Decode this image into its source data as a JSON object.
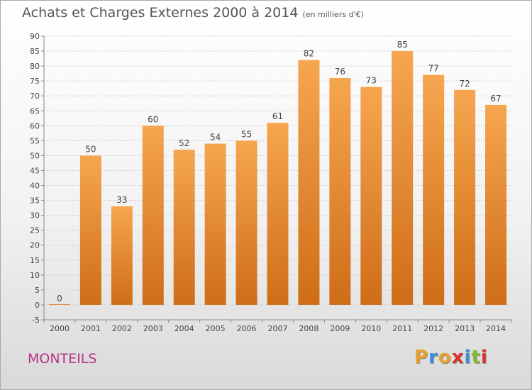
{
  "header": {
    "title": "Achats et Charges Externes 2000 à 2014",
    "unit": "(en milliers d'€)"
  },
  "footer": {
    "town": "MONTEILS",
    "logo": {
      "letters": [
        "P",
        "r",
        "o",
        "x",
        "i",
        "t",
        "i"
      ],
      "colors": [
        "#e8a02a",
        "#3a8fd9",
        "#e8a02a",
        "#d9332b",
        "#3a8fd9",
        "#86b83a",
        "#d9332b"
      ]
    }
  },
  "colors": {
    "bar_top": "#f6a64f",
    "bar_bottom": "#cf6d18",
    "grid": "#cfcfcf",
    "axis": "#888888",
    "title": "#555555",
    "town": "#b5348b"
  },
  "chart_data": {
    "type": "bar",
    "title": "Achats et Charges Externes 2000 à 2014",
    "subtitle": "(en milliers d'€)",
    "categories": [
      "2000",
      "2001",
      "2002",
      "2003",
      "2004",
      "2005",
      "2006",
      "2007",
      "2008",
      "2009",
      "2010",
      "2011",
      "2012",
      "2013",
      "2014"
    ],
    "values": [
      0,
      50,
      33,
      60,
      52,
      54,
      55,
      61,
      82,
      76,
      73,
      85,
      77,
      72,
      67
    ],
    "ylim": [
      -5,
      90
    ],
    "yticks": [
      -5,
      0,
      5,
      10,
      15,
      20,
      25,
      30,
      35,
      40,
      45,
      50,
      55,
      60,
      65,
      70,
      75,
      80,
      85,
      90
    ],
    "grid": true,
    "data_labels": true
  }
}
